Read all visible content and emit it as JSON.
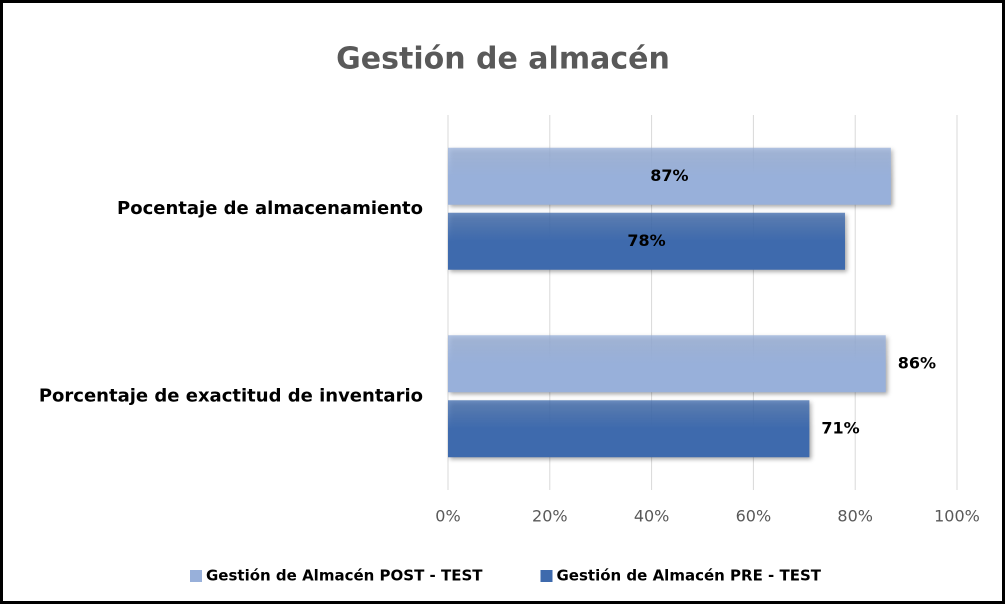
{
  "chart_data": {
    "type": "barh",
    "title": "Gestión de almacén",
    "categories": [
      "Pocentaje de almacenamiento",
      "Porcentaje de exactitud de inventario"
    ],
    "series": [
      {
        "name": "Gestión de Almacén POST - TEST",
        "color": "#98b0da",
        "values": [
          87,
          86
        ],
        "value_labels": [
          "87%",
          "86%"
        ]
      },
      {
        "name": "Gestión de Almacén PRE - TEST",
        "color": "#3e6aad",
        "values": [
          78,
          71
        ],
        "value_labels": [
          "78%",
          "71%"
        ]
      }
    ],
    "xlim": [
      0,
      100
    ],
    "xticks": [
      {
        "value": 0,
        "label": "0%"
      },
      {
        "value": 20,
        "label": "20%"
      },
      {
        "value": 40,
        "label": "40%"
      },
      {
        "value": 60,
        "label": "60%"
      },
      {
        "value": 80,
        "label": "80%"
      },
      {
        "value": 100,
        "label": "100%"
      }
    ],
    "grid": true,
    "legend": "bottom"
  }
}
